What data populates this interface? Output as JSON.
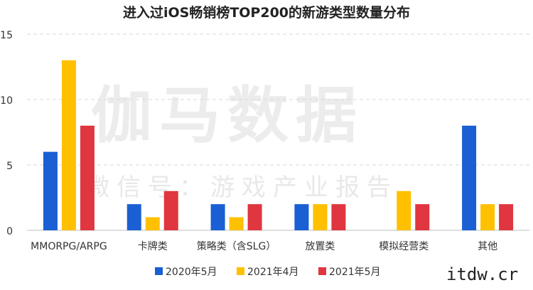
{
  "watermark": {
    "main": "伽马数据",
    "sub": "微信号：游戏产业报告"
  },
  "corner_text": "itdw.cr",
  "colors": {
    "series_2020_05": "#1a5fd3",
    "series_2021_04": "#ffc000",
    "series_2021_05": "#e0363f",
    "grid": "#d9d9d9",
    "axis": "#bfbfbf",
    "text": "#333333"
  },
  "chart_data": {
    "type": "bar",
    "title": "进入过iOS畅销榜TOP200的新游类型数量分布",
    "xlabel": "",
    "ylabel": "",
    "ylim": [
      0,
      15
    ],
    "yticks": [
      0,
      5,
      10,
      15
    ],
    "grid": true,
    "legend_position": "bottom",
    "categories": [
      "MMORPG/ARPG",
      "卡牌类",
      "策略类（含SLG）",
      "放置类",
      "模拟经营类",
      "其他"
    ],
    "series": [
      {
        "name": "2020年5月",
        "values": [
          6,
          2,
          2,
          2,
          0,
          8
        ]
      },
      {
        "name": "2021年4月",
        "values": [
          13,
          1,
          1,
          2,
          3,
          2
        ]
      },
      {
        "name": "2021年5月",
        "values": [
          8,
          3,
          2,
          2,
          2,
          2
        ]
      }
    ]
  }
}
